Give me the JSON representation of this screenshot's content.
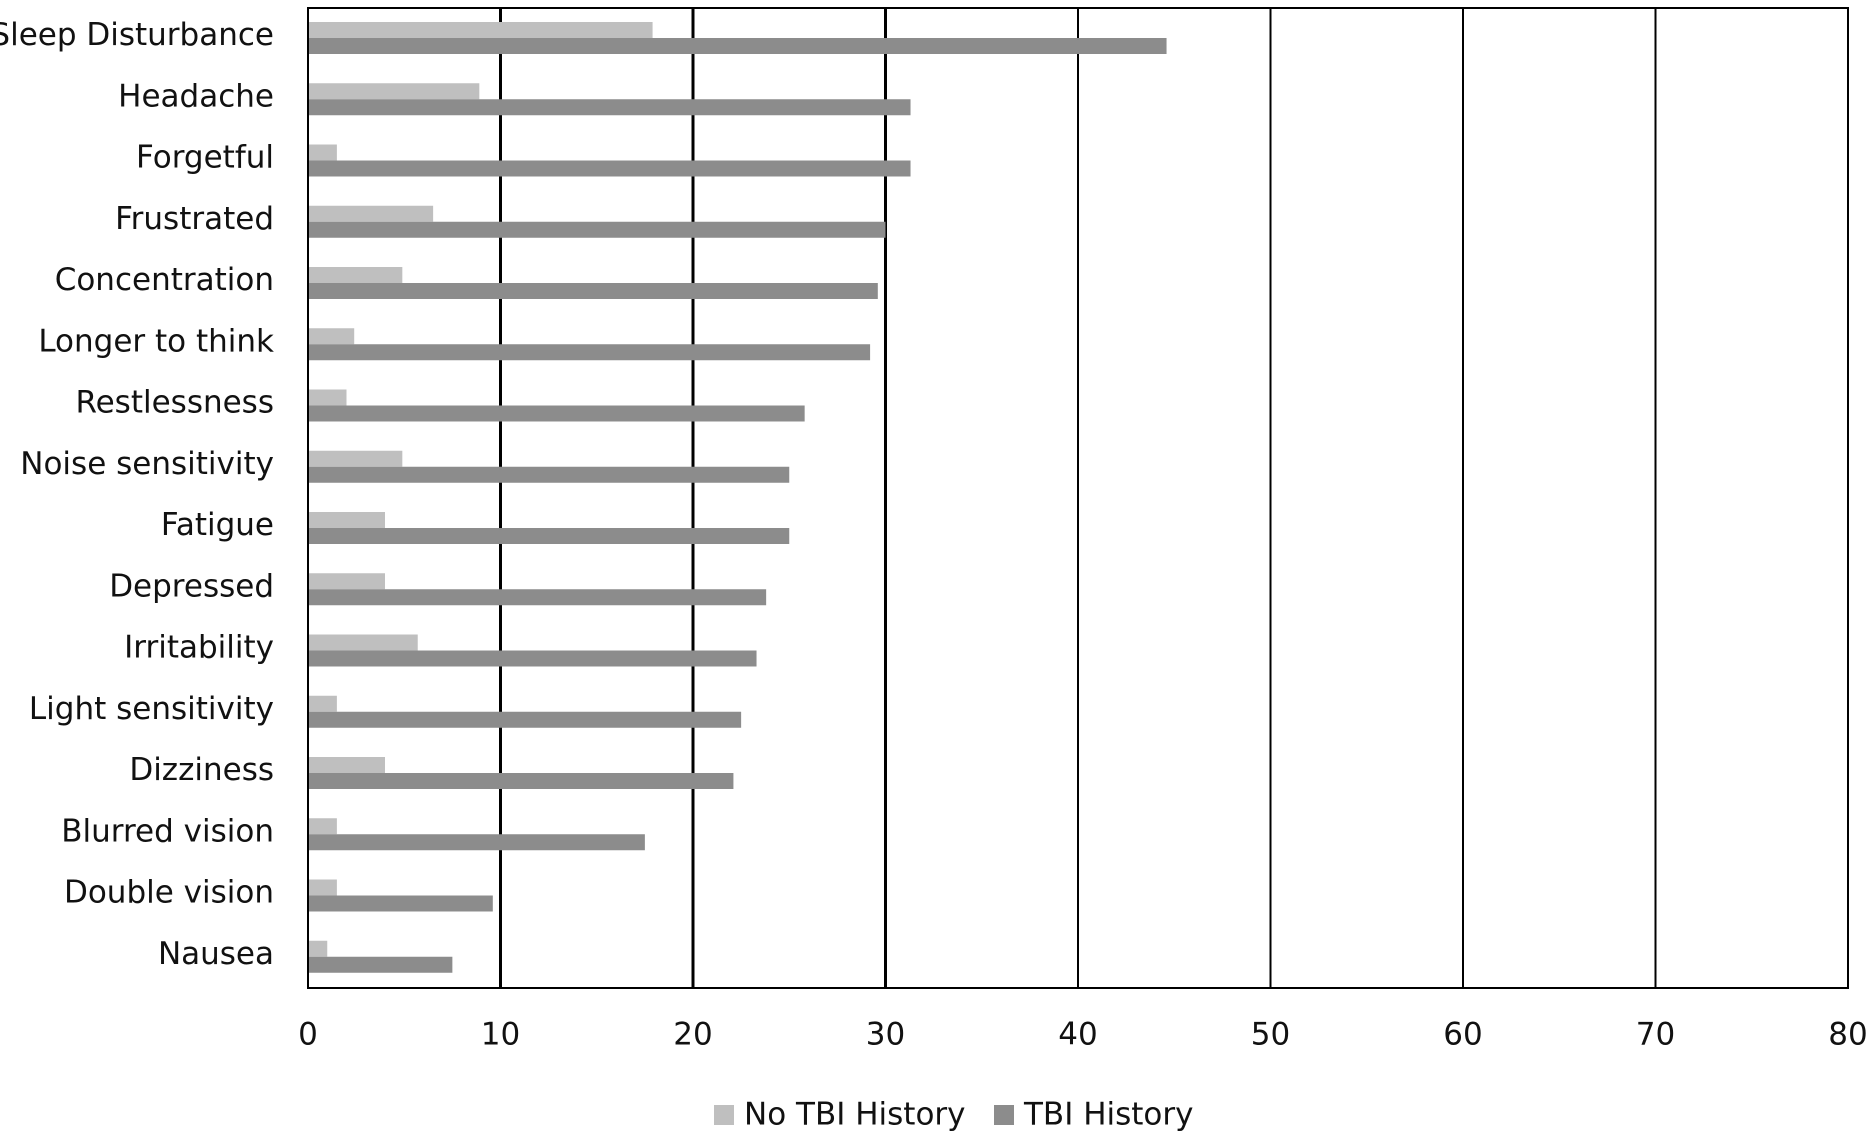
{
  "chart_data": {
    "type": "bar",
    "orientation": "horizontal",
    "categories": [
      "Sleep Disturbance",
      "Headache",
      "Forgetful",
      "Frustrated",
      "Concentration",
      "Longer to think",
      "Restlessness",
      "Noise sensitivity",
      "Fatigue",
      "Depressed",
      "Irritability",
      "Light sensitivity",
      "Dizziness",
      "Blurred vision",
      "Double vision",
      "Nausea"
    ],
    "series": [
      {
        "name": "No TBI History",
        "color": "#bfbfbf",
        "values": [
          17.9,
          8.9,
          1.5,
          6.5,
          4.9,
          2.4,
          2.0,
          4.9,
          4.0,
          4.0,
          5.7,
          1.5,
          4.0,
          1.5,
          1.5,
          1.0
        ]
      },
      {
        "name": "TBI History",
        "color": "#8c8c8c",
        "values": [
          44.6,
          31.3,
          31.3,
          30.0,
          29.6,
          29.2,
          25.8,
          25.0,
          25.0,
          23.8,
          23.3,
          22.5,
          22.1,
          17.5,
          9.6,
          7.5
        ]
      }
    ],
    "xlim": [
      0,
      80
    ],
    "xticks": [
      0,
      10,
      20,
      30,
      40,
      50,
      60,
      70,
      80
    ],
    "xtick_labels": [
      "0",
      "10",
      "20",
      "30",
      "40",
      "50",
      "60",
      "70",
      "80"
    ],
    "title": "",
    "xlabel": "",
    "ylabel": "",
    "grid": "vertical",
    "legend_position": "bottom-center"
  }
}
